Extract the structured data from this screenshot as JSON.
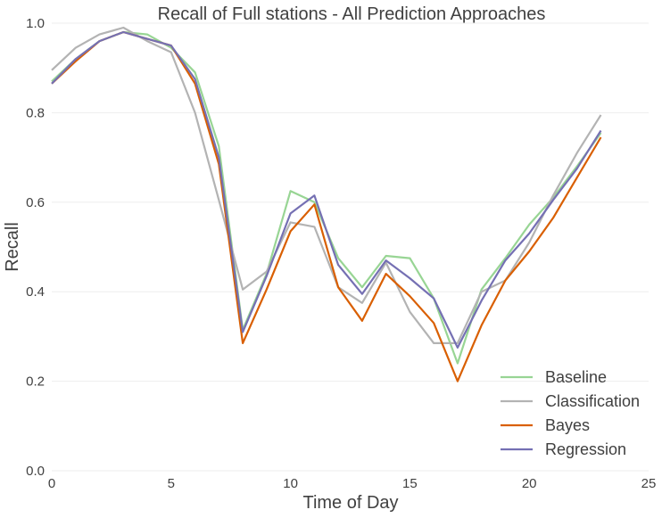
{
  "chart_data": {
    "type": "line",
    "title": "Recall of Full stations - All Prediction Approaches",
    "xlabel": "Time of Day",
    "ylabel": "Recall",
    "xlim": [
      0,
      25
    ],
    "ylim": [
      0,
      1
    ],
    "xticks": [
      "0",
      "5",
      "10",
      "15",
      "20",
      "25"
    ],
    "yticks": [
      "0.0",
      "0.2",
      "0.4",
      "0.6",
      "0.8",
      "1.0"
    ],
    "grid": true,
    "legend_position": "bottom-right",
    "x": [
      0,
      1,
      2,
      3,
      4,
      5,
      6,
      7,
      8,
      9,
      10,
      11,
      12,
      13,
      14,
      15,
      16,
      17,
      18,
      19,
      20,
      21,
      22,
      23
    ],
    "series": [
      {
        "name": "Baseline",
        "color": "#98d594",
        "values": [
          0.87,
          0.92,
          0.96,
          0.98,
          0.975,
          0.945,
          0.89,
          0.725,
          0.315,
          0.44,
          0.625,
          0.6,
          0.475,
          0.41,
          0.48,
          0.475,
          0.385,
          0.24,
          0.405,
          0.475,
          0.55,
          0.61,
          0.68,
          0.755
        ]
      },
      {
        "name": "Classification",
        "color": "#b3b3b3",
        "values": [
          0.895,
          0.945,
          0.975,
          0.99,
          0.96,
          0.935,
          0.8,
          0.605,
          0.405,
          0.445,
          0.555,
          0.545,
          0.41,
          0.375,
          0.465,
          0.355,
          0.285,
          0.285,
          0.4,
          0.425,
          0.51,
          0.615,
          0.71,
          0.795
        ]
      },
      {
        "name": "Bayes",
        "color": "#d95f02",
        "values": [
          0.865,
          0.915,
          0.96,
          0.98,
          0.965,
          0.95,
          0.865,
          0.685,
          0.285,
          0.405,
          0.535,
          0.595,
          0.41,
          0.335,
          0.44,
          0.39,
          0.33,
          0.2,
          0.325,
          0.425,
          0.49,
          0.565,
          0.655,
          0.745
        ]
      },
      {
        "name": "Regression",
        "color": "#7570b3",
        "values": [
          0.865,
          0.92,
          0.96,
          0.98,
          0.965,
          0.95,
          0.875,
          0.7,
          0.31,
          0.435,
          0.575,
          0.615,
          0.46,
          0.395,
          0.47,
          0.43,
          0.385,
          0.275,
          0.38,
          0.47,
          0.53,
          0.605,
          0.675,
          0.76
        ]
      }
    ]
  }
}
